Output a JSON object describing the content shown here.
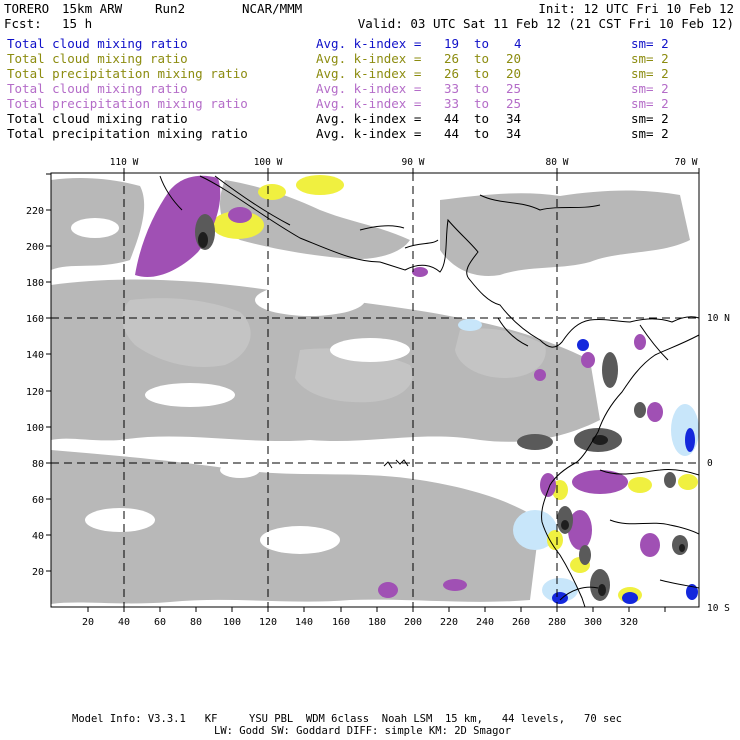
{
  "header": {
    "model": "TORERO",
    "resolution": "15km ARW",
    "run": "Run2",
    "org": "NCAR/MMM",
    "init": "Init: 12 UTC Fri 10 Feb 12",
    "fcst_label": "Fcst:",
    "fcst_value": "15 h",
    "valid": "Valid: 03 UTC Sat 11 Feb 12 (21 CST Fri 10 Feb 12)"
  },
  "legend": [
    {
      "field": "Total cloud mixing ratio",
      "k_label": "Avg. k-index =",
      "k_from": "19",
      "to": "to",
      "k_to": "4",
      "sm": "sm= 2",
      "color": "#1010c8"
    },
    {
      "field": "Total cloud mixing ratio",
      "k_label": "Avg. k-index =",
      "k_from": "26",
      "to": "to",
      "k_to": "20",
      "sm": "sm= 2",
      "color": "#8c8c10"
    },
    {
      "field": "Total precipitation mixing ratio",
      "k_label": "Avg. k-index =",
      "k_from": "26",
      "to": "to",
      "k_to": "20",
      "sm": "sm= 2",
      "color": "#8c8c10"
    },
    {
      "field": "Total cloud mixing ratio",
      "k_label": "Avg. k-index =",
      "k_from": "33",
      "to": "to",
      "k_to": "25",
      "sm": "sm= 2",
      "color": "#b46cc8"
    },
    {
      "field": "Total precipitation mixing ratio",
      "k_label": "Avg. k-index =",
      "k_from": "33",
      "to": "to",
      "k_to": "25",
      "sm": "sm= 2",
      "color": "#b46cc8"
    },
    {
      "field": "Total cloud mixing ratio",
      "k_label": "Avg. k-index =",
      "k_from": "44",
      "to": "to",
      "k_to": "34",
      "sm": "sm= 2",
      "color": "#000000"
    },
    {
      "field": "Total precipitation mixing ratio",
      "k_label": "Avg. k-index =",
      "k_from": "44",
      "to": "to",
      "k_to": "34",
      "sm": "sm= 2",
      "color": "#000000"
    }
  ],
  "map": {
    "lon_labels": [
      "110 W",
      "100 W",
      "90 W",
      "80 W",
      "70 W"
    ],
    "lat_labels": [
      "10 N",
      "0",
      "10 S"
    ],
    "x_ticks": [
      "20",
      "40",
      "60",
      "80",
      "100",
      "120",
      "140",
      "160",
      "180",
      "200",
      "220",
      "240",
      "260",
      "280",
      "300",
      "320"
    ],
    "y_ticks": [
      "20",
      "40",
      "60",
      "80",
      "100",
      "120",
      "140",
      "160",
      "180",
      "200",
      "220"
    ],
    "colors": {
      "cloud_gray": "#b8b8b8",
      "dark_gray": "#5a5a5a",
      "purple": "#a050b4",
      "yellow": "#f0f040",
      "light_blue": "#c8e6fa",
      "blue": "#1428dc"
    }
  },
  "footer": {
    "line1": "Model Info: V3.3.1   KF     YSU PBL  WDM 6class  Noah LSM  15 km,   44 levels,   70 sec",
    "line2": "LW: Godd SW: Goddard DIFF: simple KM: 2D Smagor"
  }
}
